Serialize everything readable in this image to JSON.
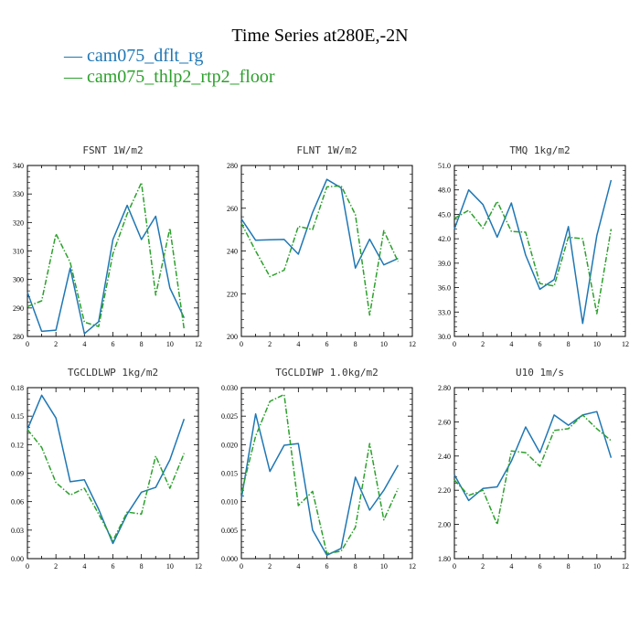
{
  "title": "Time Series at280E,-2N",
  "legend": [
    {
      "label": "cam075_dflt_rg",
      "color": "#1f77b4"
    },
    {
      "label": "cam075_thlp2_rtp2_floor",
      "color": "#2ca02c"
    }
  ],
  "chart_data": [
    {
      "type": "line",
      "title": "FSNT  1W/m2",
      "x": [
        0,
        1,
        2,
        3,
        4,
        5,
        6,
        7,
        8,
        9,
        10,
        11
      ],
      "xlim": [
        0,
        12
      ],
      "xticks": [
        "0",
        "2",
        "4",
        "6",
        "8",
        "10",
        "12"
      ],
      "ylim": [
        280,
        340
      ],
      "yticks": [
        "280",
        "290",
        "300",
        "310",
        "320",
        "330",
        "340"
      ],
      "series": [
        {
          "name": "cam075_dflt_rg",
          "values": [
            295.5,
            281.8,
            282.2,
            304.0,
            281.0,
            285.2,
            314.0,
            326.0,
            314.0,
            322.2,
            297.0,
            286.5
          ]
        },
        {
          "name": "cam075_thlp2_rtp2_floor",
          "values": [
            290.5,
            292.5,
            316.0,
            306.0,
            285.0,
            283.5,
            309.0,
            323.0,
            334.0,
            294.5,
            318.0,
            282.5
          ]
        }
      ]
    },
    {
      "type": "line",
      "title": "FLNT  1W/m2",
      "x": [
        0,
        1,
        2,
        3,
        4,
        5,
        6,
        7,
        8,
        9,
        10,
        11
      ],
      "xlim": [
        0,
        12
      ],
      "xticks": [
        "0",
        "2",
        "4",
        "6",
        "8",
        "10",
        "12"
      ],
      "ylim": [
        200,
        280
      ],
      "yticks": [
        "200",
        "220",
        "240",
        "260",
        "280"
      ],
      "series": [
        {
          "name": "cam075_dflt_rg",
          "values": [
            255.0,
            245.0,
            245.2,
            245.4,
            238.5,
            258.0,
            273.5,
            269.5,
            232.0,
            245.5,
            233.5,
            236.5
          ]
        },
        {
          "name": "cam075_thlp2_rtp2_floor",
          "values": [
            253.0,
            240.0,
            228.0,
            231.0,
            251.5,
            250.0,
            270.0,
            270.5,
            257.0,
            210.0,
            249.5,
            235.0
          ]
        }
      ]
    },
    {
      "type": "line",
      "title": "TMQ  1kg/m2",
      "x": [
        0,
        1,
        2,
        3,
        4,
        5,
        6,
        7,
        8,
        9,
        10,
        11
      ],
      "xlim": [
        0,
        12
      ],
      "xticks": [
        "0",
        "2",
        "4",
        "6",
        "8",
        "10",
        "12"
      ],
      "ylim": [
        30,
        51
      ],
      "yticks": [
        "30.0",
        "33.0",
        "36.0",
        "39.0",
        "42.0",
        "45.0",
        "48.0",
        "51.0"
      ],
      "series": [
        {
          "name": "cam075_dflt_rg",
          "values": [
            43.2,
            48.0,
            46.2,
            42.2,
            46.4,
            40.0,
            35.8,
            37.0,
            43.5,
            31.6,
            42.4,
            49.2
          ]
        },
        {
          "name": "cam075_thlp2_rtp2_floor",
          "values": [
            44.5,
            45.5,
            43.3,
            46.6,
            42.9,
            42.8,
            36.5,
            36.2,
            42.2,
            42.0,
            32.8,
            43.2
          ]
        }
      ]
    },
    {
      "type": "line",
      "title": "TGCLDLWP  1kg/m2",
      "x": [
        0,
        1,
        2,
        3,
        4,
        5,
        6,
        7,
        8,
        9,
        10,
        11
      ],
      "xlim": [
        0,
        12
      ],
      "xticks": [
        "0",
        "2",
        "4",
        "6",
        "8",
        "10",
        "12"
      ],
      "ylim": [
        0,
        0.18
      ],
      "yticks": [
        "0.00",
        "0.03",
        "0.06",
        "0.09",
        "0.12",
        "0.15",
        "0.18"
      ],
      "series": [
        {
          "name": "cam075_dflt_rg",
          "values": [
            0.136,
            0.172,
            0.148,
            0.081,
            0.083,
            0.052,
            0.016,
            0.047,
            0.07,
            0.075,
            0.104,
            0.147
          ]
        },
        {
          "name": "cam075_thlp2_rtp2_floor",
          "values": [
            0.136,
            0.117,
            0.08,
            0.067,
            0.074,
            0.047,
            0.019,
            0.049,
            0.047,
            0.108,
            0.074,
            0.111
          ]
        }
      ]
    },
    {
      "type": "line",
      "title": "TGCLDIWP  1.0kg/m2",
      "x": [
        0,
        1,
        2,
        3,
        4,
        5,
        6,
        7,
        8,
        9,
        10,
        11
      ],
      "xlim": [
        0,
        12
      ],
      "xticks": [
        "0",
        "2",
        "4",
        "6",
        "8",
        "10",
        "12"
      ],
      "ylim": [
        0,
        0.03
      ],
      "yticks": [
        "0.000",
        "0.005",
        "0.010",
        "0.015",
        "0.020",
        "0.025",
        "0.030"
      ],
      "series": [
        {
          "name": "cam075_dflt_rg",
          "values": [
            0.0105,
            0.0254,
            0.0153,
            0.0199,
            0.0202,
            0.005,
            0.0006,
            0.0018,
            0.0143,
            0.0085,
            0.012,
            0.0164
          ]
        },
        {
          "name": "cam075_thlp2_rtp2_floor",
          "values": [
            0.0115,
            0.0215,
            0.0276,
            0.0288,
            0.0093,
            0.0118,
            0.0009,
            0.0013,
            0.0055,
            0.0202,
            0.0068,
            0.0123
          ]
        }
      ]
    },
    {
      "type": "line",
      "title": "U10  1m/s",
      "x": [
        0,
        1,
        2,
        3,
        4,
        5,
        6,
        7,
        8,
        9,
        10,
        11
      ],
      "xlim": [
        0,
        12
      ],
      "xticks": [
        "0",
        "2",
        "4",
        "6",
        "8",
        "10",
        "12"
      ],
      "ylim": [
        1.8,
        2.8
      ],
      "yticks": [
        "1.80",
        "2.00",
        "2.20",
        "2.40",
        "2.60",
        "2.80"
      ],
      "series": [
        {
          "name": "cam075_dflt_rg",
          "values": [
            2.29,
            2.14,
            2.21,
            2.22,
            2.37,
            2.57,
            2.42,
            2.64,
            2.58,
            2.64,
            2.66,
            2.39
          ]
        },
        {
          "name": "cam075_thlp2_rtp2_floor",
          "values": [
            2.26,
            2.17,
            2.2,
            2.0,
            2.43,
            2.42,
            2.34,
            2.55,
            2.56,
            2.64,
            2.56,
            2.49
          ]
        }
      ]
    }
  ]
}
